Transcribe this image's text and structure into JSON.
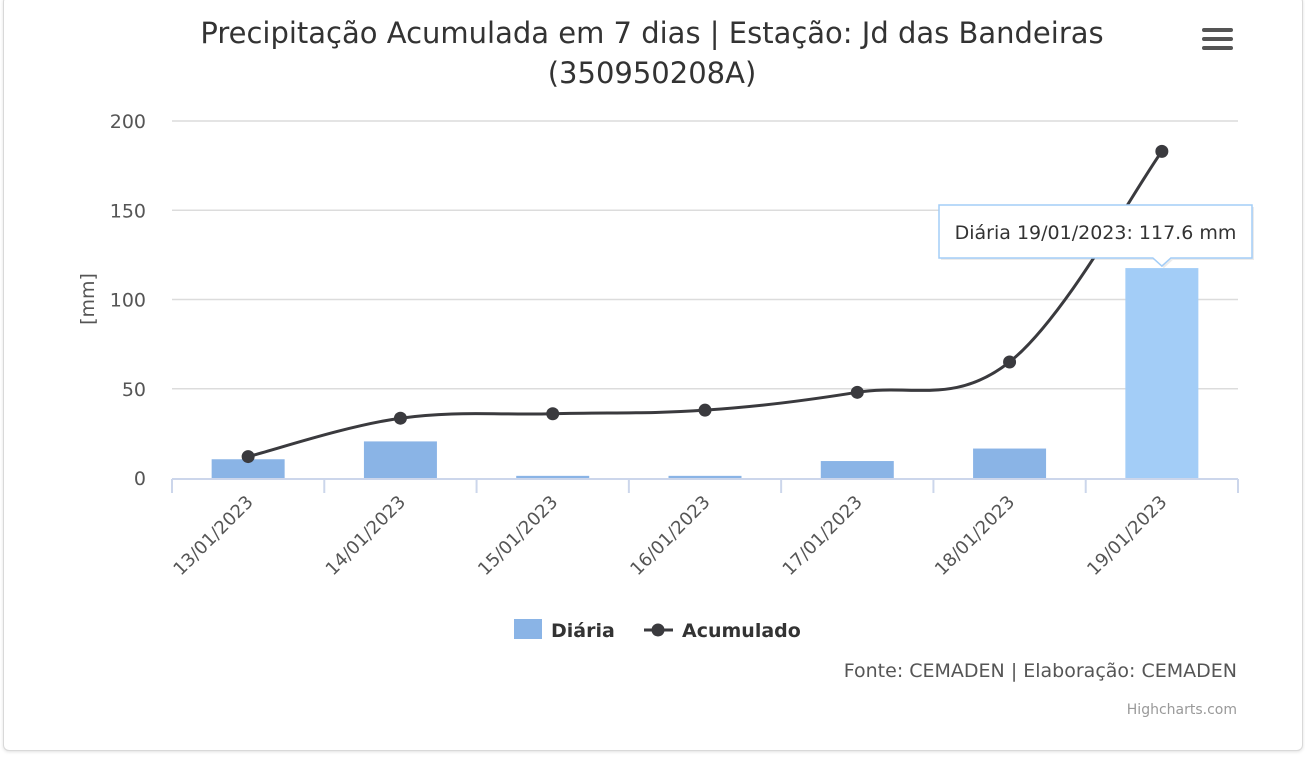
{
  "chart_data": {
    "type": "bar",
    "title": "Precipitação Acumulada em 7 dias | Estação: Jd das Bandeiras",
    "subtitle": "(350950208A)",
    "ylabel": "[mm]",
    "xlabel": "",
    "ylim": [
      0,
      200
    ],
    "yticks": [
      0,
      50,
      100,
      150,
      200
    ],
    "categories": [
      "13/01/2023",
      "14/01/2023",
      "15/01/2023",
      "16/01/2023",
      "17/01/2023",
      "18/01/2023",
      "19/01/2023"
    ],
    "series": [
      {
        "name": "Diária",
        "type": "bar",
        "color": "#8ab4e6",
        "values": [
          10.5,
          20.5,
          1.2,
          1.2,
          9.5,
          16.5,
          117.6
        ]
      },
      {
        "name": "Acumulado",
        "type": "line",
        "color": "#3a3a3e",
        "values": [
          12,
          33.5,
          36,
          38,
          48,
          65,
          183
        ]
      }
    ],
    "highlight": {
      "index": 6,
      "color": "#a3cdf7"
    },
    "tooltip": "Diária 19/01/2023: 117.6 mm",
    "grid": true,
    "legend_position": "bottom-center"
  },
  "credits": {
    "source": "Fonte: CEMADEN | Elaboração: CEMADEN",
    "brand": "Highcharts.com"
  },
  "menu_icon": "hamburger-menu-icon"
}
